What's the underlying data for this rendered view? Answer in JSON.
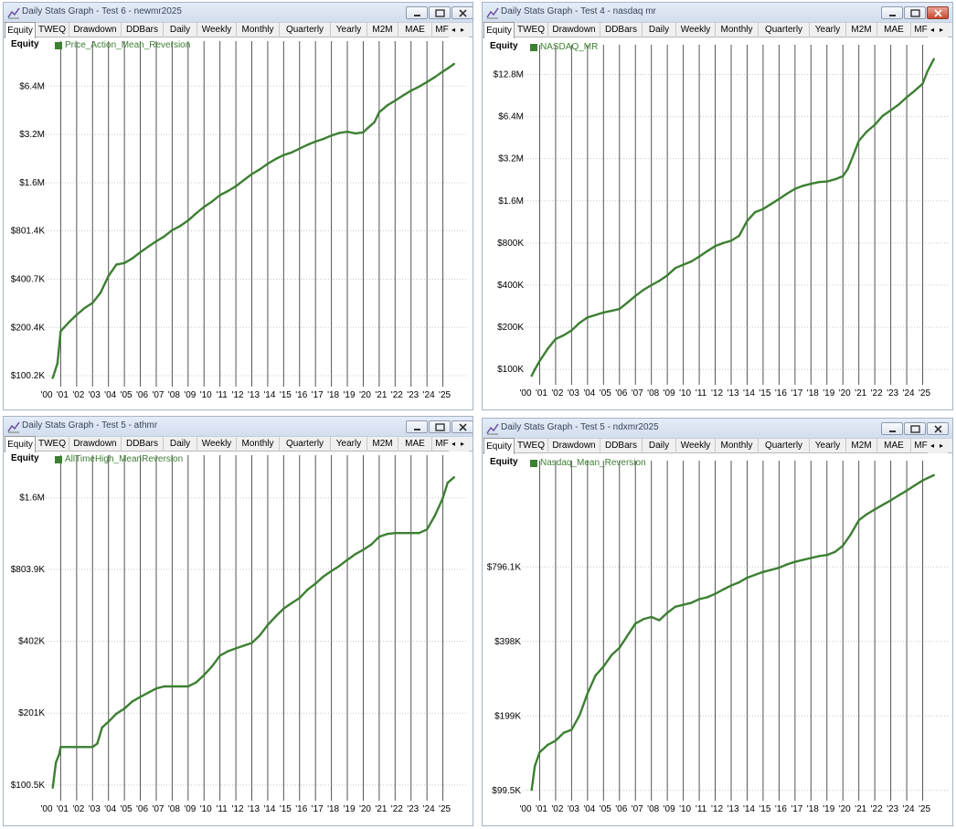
{
  "common": {
    "tabs": [
      "Equity",
      "TWEQ",
      "Drawdown",
      "DDBars",
      "Daily",
      "Weekly",
      "Monthly",
      "Quarterly",
      "Yearly",
      "M2M",
      "MAE",
      "MF"
    ],
    "active_tab": "Equity",
    "y_axis_label": "Equity",
    "x_ticks": [
      "'00",
      "'01",
      "'02",
      "'03",
      "'04",
      "'05",
      "'06",
      "'07",
      "'08",
      "'09",
      "'10",
      "'11",
      "'12",
      "'13",
      "'14",
      "'15",
      "'16",
      "'17",
      "'18",
      "'19",
      "'20",
      "'21",
      "'22",
      "'23",
      "'24",
      "'25"
    ],
    "tab_left_arrow": "◂",
    "tab_right_arrow": "▸",
    "colors": {
      "series": "#3d7f33",
      "titlebar": "#dae3f0",
      "close": "#c94b32"
    }
  },
  "windows": [
    {
      "title": "Daily Stats Graph - Test 6 - newmr2025"
    },
    {
      "title": "Daily Stats Graph - Test 4 - nasdaq mr"
    },
    {
      "title": "Daily Stats Graph - Test 5 - athmr"
    },
    {
      "title": "Daily Stats Graph - Test 5 - ndxmr2025"
    }
  ],
  "chart_data": [
    {
      "type": "line",
      "y_scale": "log",
      "series": [
        {
          "name": "Price_Action_Mean_Reversion",
          "x": [
            2000.5,
            2000.8,
            2001.0,
            2001.5,
            2002.0,
            2002.5,
            2003.0,
            2003.5,
            2004.0,
            2004.5,
            2005.0,
            2005.5,
            2006.0,
            2006.5,
            2007.0,
            2007.5,
            2008.0,
            2008.5,
            2009.0,
            2009.5,
            2010.0,
            2010.5,
            2011.0,
            2011.5,
            2012.0,
            2012.5,
            2013.0,
            2013.5,
            2014.0,
            2014.5,
            2015.0,
            2015.5,
            2016.0,
            2016.5,
            2017.0,
            2017.5,
            2018.0,
            2018.5,
            2019.0,
            2019.5,
            2020.0,
            2020.3,
            2020.7,
            2021.0,
            2021.5,
            2022.0,
            2022.5,
            2023.0,
            2023.5,
            2024.0,
            2024.5,
            2025.0,
            2025.3,
            2025.7
          ],
          "y": [
            97,
            120,
            190,
            215,
            240,
            265,
            285,
            330,
            420,
            495,
            505,
            540,
            590,
            640,
            690,
            740,
            810,
            860,
            930,
            1030,
            1130,
            1220,
            1340,
            1420,
            1520,
            1660,
            1810,
            1940,
            2100,
            2250,
            2380,
            2470,
            2610,
            2760,
            2890,
            3000,
            3150,
            3270,
            3330,
            3250,
            3300,
            3520,
            3820,
            4400,
            4850,
            5200,
            5600,
            6000,
            6350,
            6800,
            7300,
            7900,
            8250,
            8800
          ]
        }
      ],
      "y_ticks": [
        100.2,
        200.4,
        400.7,
        801.4,
        1600,
        3200,
        6400
      ],
      "y_tick_labels": [
        "$100.2K",
        "$200.4K",
        "$400.7K",
        "$801.4K",
        "$1.6M",
        "$3.2M",
        "$6.4M"
      ],
      "ylim": [
        88,
        11000
      ],
      "xlim": [
        2000,
        2026
      ]
    },
    {
      "type": "line",
      "y_scale": "log",
      "series": [
        {
          "name": "NASDAQ_MR",
          "x": [
            2000.5,
            2000.7,
            2001.0,
            2001.5,
            2002.0,
            2002.5,
            2003.0,
            2003.5,
            2004.0,
            2004.5,
            2005.0,
            2005.5,
            2006.0,
            2006.5,
            2007.0,
            2007.5,
            2008.0,
            2008.5,
            2009.0,
            2009.5,
            2010.0,
            2010.5,
            2011.0,
            2011.5,
            2012.0,
            2012.5,
            2013.0,
            2013.5,
            2014.0,
            2014.5,
            2015.0,
            2015.5,
            2016.0,
            2016.5,
            2017.0,
            2017.5,
            2018.0,
            2018.5,
            2019.0,
            2019.5,
            2020.0,
            2020.3,
            2020.7,
            2021.0,
            2021.5,
            2022.0,
            2022.5,
            2023.0,
            2023.5,
            2024.0,
            2024.5,
            2025.0,
            2025.3,
            2025.7
          ],
          "y": [
            90,
            100,
            115,
            140,
            165,
            175,
            190,
            215,
            235,
            245,
            255,
            262,
            270,
            300,
            335,
            370,
            400,
            430,
            470,
            530,
            560,
            590,
            640,
            700,
            760,
            800,
            830,
            900,
            1150,
            1330,
            1400,
            1520,
            1650,
            1800,
            1950,
            2050,
            2120,
            2180,
            2200,
            2280,
            2400,
            2700,
            3500,
            4300,
            5000,
            5600,
            6500,
            7100,
            7800,
            8800,
            9800,
            11000,
            13500,
            16500
          ]
        }
      ],
      "y_ticks": [
        100,
        200,
        400,
        800,
        1600,
        3200,
        6400,
        12800
      ],
      "y_tick_labels": [
        "$100K",
        "$200K",
        "$400K",
        "$800K",
        "$1.6M",
        "$3.2M",
        "$6.4M",
        "$12.8M"
      ],
      "ylim": [
        80,
        18500
      ],
      "xlim": [
        2000,
        2026
      ]
    },
    {
      "type": "line",
      "y_scale": "log",
      "series": [
        {
          "name": "AllTimeHigh_MeanReversion",
          "x": [
            2000.5,
            2000.7,
            2000.9,
            2001.0,
            2001.5,
            2002.0,
            2002.5,
            2003.0,
            2003.3,
            2003.6,
            2004.0,
            2004.5,
            2005.0,
            2005.5,
            2006.0,
            2006.5,
            2007.0,
            2007.5,
            2008.0,
            2008.5,
            2009.0,
            2009.5,
            2010.0,
            2010.5,
            2011.0,
            2011.5,
            2012.0,
            2012.5,
            2013.0,
            2013.5,
            2014.0,
            2014.5,
            2015.0,
            2015.5,
            2016.0,
            2016.5,
            2017.0,
            2017.5,
            2018.0,
            2018.5,
            2019.0,
            2019.5,
            2020.0,
            2020.5,
            2021.0,
            2021.5,
            2022.0,
            2022.5,
            2023.0,
            2023.5,
            2024.0,
            2024.5,
            2025.0,
            2025.3,
            2025.7
          ],
          "y": [
            98,
            125,
            135,
            145,
            145,
            145,
            145,
            145,
            150,
            175,
            185,
            200,
            210,
            225,
            235,
            245,
            255,
            260,
            260,
            260,
            260,
            270,
            290,
            315,
            350,
            365,
            375,
            385,
            395,
            425,
            470,
            510,
            550,
            580,
            610,
            660,
            700,
            750,
            790,
            830,
            880,
            930,
            970,
            1020,
            1100,
            1130,
            1140,
            1140,
            1140,
            1140,
            1180,
            1350,
            1600,
            1850,
            1950
          ]
        }
      ],
      "y_ticks": [
        100.5,
        201,
        402,
        803.9,
        1600
      ],
      "y_tick_labels": [
        "$100.5K",
        "$201K",
        "$402K",
        "$803.9K",
        "$1.6M"
      ],
      "ylim": [
        88,
        2250
      ],
      "xlim": [
        2000,
        2026
      ]
    },
    {
      "type": "line",
      "y_scale": "log",
      "series": [
        {
          "name": "Nasdaq_Mean_Reversion",
          "x": [
            2000.5,
            2000.7,
            2001.0,
            2001.5,
            2002.0,
            2002.5,
            2003.0,
            2003.5,
            2004.0,
            2004.5,
            2005.0,
            2005.5,
            2006.0,
            2006.5,
            2007.0,
            2007.5,
            2008.0,
            2008.5,
            2009.0,
            2009.5,
            2010.0,
            2010.5,
            2011.0,
            2011.5,
            2012.0,
            2012.5,
            2013.0,
            2013.5,
            2014.0,
            2014.5,
            2015.0,
            2015.5,
            2016.0,
            2016.5,
            2017.0,
            2017.5,
            2018.0,
            2018.5,
            2019.0,
            2019.5,
            2020.0,
            2020.5,
            2021.0,
            2021.5,
            2022.0,
            2022.5,
            2023.0,
            2023.5,
            2024.0,
            2024.5,
            2025.0,
            2025.3,
            2025.7
          ],
          "y": [
            100,
            125,
            142,
            152,
            158,
            170,
            175,
            200,
            245,
            290,
            315,
            350,
            375,
            420,
            470,
            490,
            500,
            485,
            520,
            550,
            560,
            570,
            590,
            600,
            620,
            645,
            670,
            690,
            720,
            740,
            760,
            775,
            790,
            815,
            835,
            850,
            865,
            880,
            890,
            915,
            970,
            1080,
            1230,
            1300,
            1360,
            1420,
            1480,
            1550,
            1620,
            1700,
            1780,
            1820,
            1870
          ]
        }
      ],
      "y_ticks": [
        99.5,
        199,
        398,
        796.1
      ],
      "y_tick_labels": [
        "$99.5K",
        "$199K",
        "$398K",
        "$796.1K"
      ],
      "ylim": [
        92,
        2000
      ],
      "xlim": [
        2000,
        2026
      ]
    }
  ]
}
